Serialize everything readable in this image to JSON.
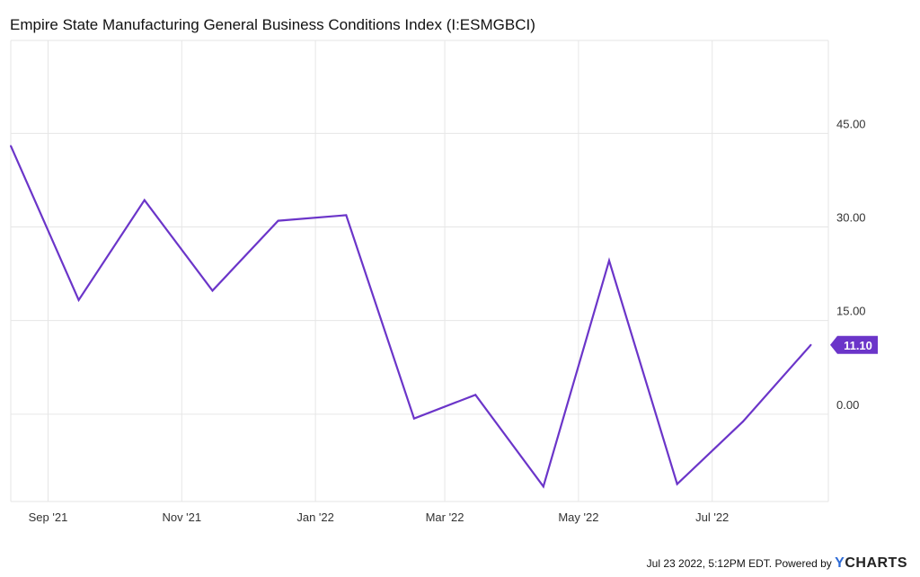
{
  "title": "Empire State Manufacturing General Business Conditions Index (I:ESMGBCI)",
  "footer": {
    "timestamp": "Jul 23 2022, 5:12PM EDT.",
    "powered_by": "Powered by",
    "brand_y": "Y",
    "brand_rest": "CHARTS"
  },
  "colors": {
    "line": "#6b35c9",
    "grid": "#e6e6e6",
    "axis_text": "#333333",
    "badge": "#6b35c9",
    "badge_text": "#ffffff"
  },
  "chart_data": {
    "type": "line",
    "title": "Empire State Manufacturing General Business Conditions Index (I:ESMGBCI)",
    "x": [
      "2021-08-15",
      "2021-09-15",
      "2021-10-15",
      "2021-11-15",
      "2021-12-15",
      "2022-01-15",
      "2022-02-15",
      "2022-03-15",
      "2022-04-15",
      "2022-05-15",
      "2022-06-15",
      "2022-07-15",
      "2022-08-15"
    ],
    "series": [
      {
        "values": [
          43.0,
          18.3,
          34.3,
          19.8,
          31.0,
          31.9,
          -0.7,
          3.1,
          -11.6,
          24.6,
          -11.2,
          -1.2,
          11.1
        ]
      }
    ],
    "x_ticks": [
      {
        "date": "2021-09-01",
        "label": "Sep '21"
      },
      {
        "date": "2021-11-01",
        "label": "Nov '21"
      },
      {
        "date": "2022-01-01",
        "label": "Jan '22"
      },
      {
        "date": "2022-03-01",
        "label": "Mar '22"
      },
      {
        "date": "2022-05-01",
        "label": "May '22"
      },
      {
        "date": "2022-07-01",
        "label": "Jul '22"
      }
    ],
    "y_ticks": [
      {
        "value": 45,
        "label": "45.00"
      },
      {
        "value": 30,
        "label": "30.00"
      },
      {
        "value": 15,
        "label": "15.00"
      },
      {
        "value": 0,
        "label": "0.00"
      }
    ],
    "last_value_label": "11.10",
    "last_value": 11.1,
    "xlim": [
      "2021-08-15",
      "2022-08-23"
    ],
    "ylim": [
      -14.0,
      59.9
    ],
    "grid": true,
    "y_axis_side": "right"
  }
}
